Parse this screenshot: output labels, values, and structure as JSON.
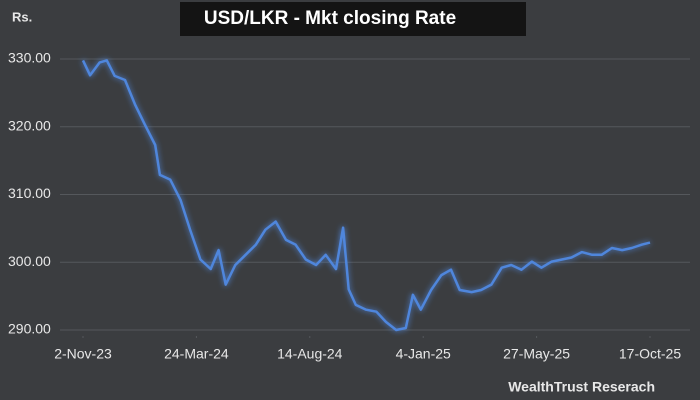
{
  "chart_data": {
    "type": "line",
    "title": "USD/LKR - Mkt closing Rate",
    "ylabel": "Rs.",
    "source": "WealthTrust Reserach",
    "color": "#4f86dc",
    "grid": true,
    "x": [
      "2023-11-02",
      "2023-11-11",
      "2023-11-23",
      "2023-12-02",
      "2023-12-12",
      "2023-12-25",
      "2024-01-07",
      "2024-01-19",
      "2024-02-01",
      "2024-02-07",
      "2024-02-20",
      "2024-03-04",
      "2024-03-16",
      "2024-03-29",
      "2024-04-11",
      "2024-04-21",
      "2024-04-30",
      "2024-05-12",
      "2024-05-25",
      "2024-06-07",
      "2024-06-19",
      "2024-07-02",
      "2024-07-15",
      "2024-07-27",
      "2024-08-09",
      "2024-08-22",
      "2024-09-03",
      "2024-09-16",
      "2024-09-25",
      "2024-10-02",
      "2024-10-11",
      "2024-10-24",
      "2024-11-06",
      "2024-11-18",
      "2024-12-01",
      "2024-12-13",
      "2024-12-22",
      "2025-01-01",
      "2025-01-14",
      "2025-01-27",
      "2025-02-08",
      "2025-02-19",
      "2025-03-06",
      "2025-03-18",
      "2025-03-31",
      "2025-04-13",
      "2025-04-25",
      "2025-05-08",
      "2025-05-21",
      "2025-06-02",
      "2025-06-15",
      "2025-06-28",
      "2025-07-10",
      "2025-07-23",
      "2025-08-05",
      "2025-08-17",
      "2025-08-30",
      "2025-09-12",
      "2025-09-24",
      "2025-10-07",
      "2025-10-17"
    ],
    "values": [
      329.8,
      327.6,
      329.5,
      329.8,
      327.5,
      326.9,
      323.2,
      320.3,
      317.3,
      312.9,
      312.2,
      309.2,
      304.8,
      300.4,
      299.0,
      301.8,
      296.7,
      299.6,
      301.1,
      302.6,
      304.8,
      306.0,
      303.3,
      302.6,
      300.4,
      299.6,
      301.1,
      299.0,
      305.1,
      296.0,
      293.7,
      293.0,
      292.7,
      291.2,
      290.0,
      290.3,
      295.2,
      293.0,
      295.9,
      298.1,
      298.9,
      295.9,
      295.6,
      295.9,
      296.7,
      299.2,
      299.6,
      298.9,
      300.1,
      299.2,
      300.1,
      300.4,
      300.7,
      301.5,
      301.1,
      301.1,
      302.1,
      301.8,
      302.1,
      302.6,
      302.9
    ],
    "xlim": [
      "2023-11-02",
      "2025-10-17"
    ],
    "xticks": [
      {
        "value": "2023-11-02",
        "label": "2-Nov-23"
      },
      {
        "value": "2024-03-24",
        "label": "24-Mar-24"
      },
      {
        "value": "2024-08-14",
        "label": "14-Aug-24"
      },
      {
        "value": "2025-01-04",
        "label": "4-Jan-25"
      },
      {
        "value": "2025-05-27",
        "label": "27-May-25"
      },
      {
        "value": "2025-10-17",
        "label": "17-Oct-25"
      }
    ],
    "ylim": [
      290,
      330
    ],
    "yticks": [
      {
        "value": 290,
        "label": "290.00"
      },
      {
        "value": 300,
        "label": "300.00"
      },
      {
        "value": 310,
        "label": "310.00"
      },
      {
        "value": 320,
        "label": "320.00"
      },
      {
        "value": 330,
        "label": "330.00"
      }
    ]
  }
}
